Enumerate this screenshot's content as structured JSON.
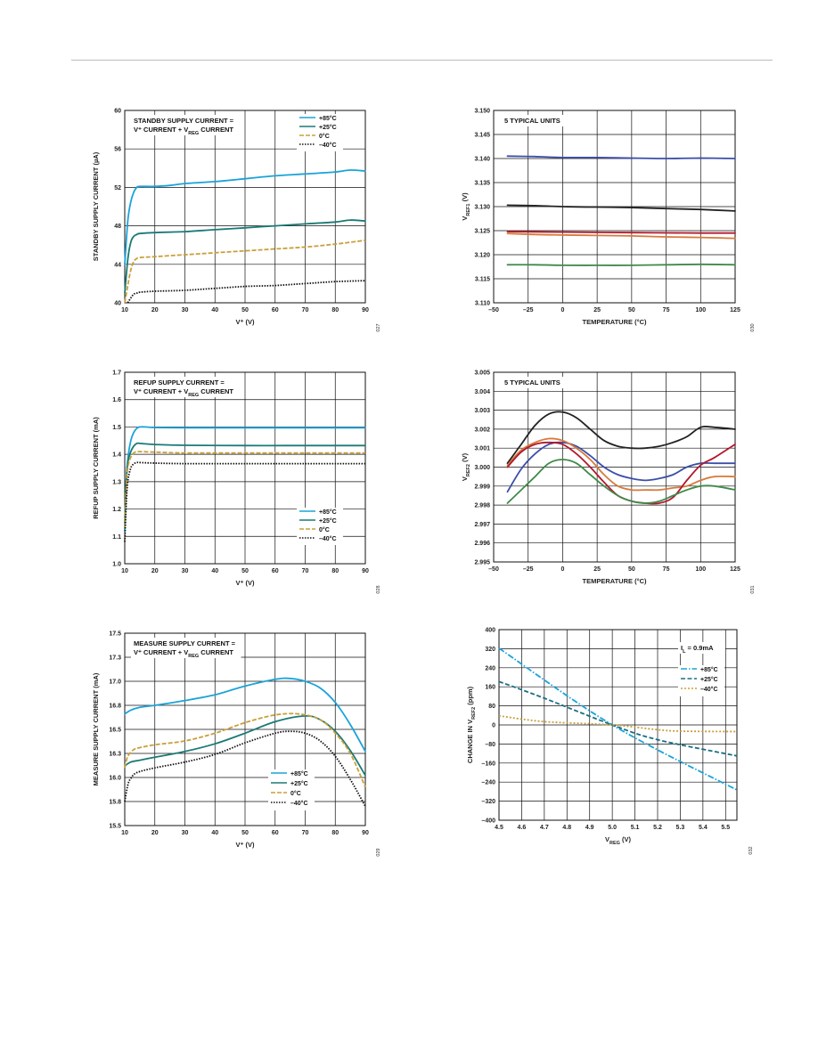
{
  "chart_data": [
    {
      "id": "standby",
      "type": "line",
      "xlabel": "V⁺ (V)",
      "ylabel": "STANDBY SUPPLY CURRENT (µA)",
      "xlim": [
        10,
        90
      ],
      "ylim": [
        40,
        60
      ],
      "xticks": [
        10,
        20,
        30,
        40,
        50,
        60,
        70,
        80,
        90
      ],
      "yticks": [
        40,
        44,
        48,
        52,
        56,
        60
      ],
      "grid": true,
      "annotation": [
        "STANDBY SUPPLY CURRENT =",
        "V⁺ CURRENT + VREG CURRENT"
      ],
      "legend_position": "top-right",
      "figure_number": "027",
      "series": [
        {
          "name": "+85°C",
          "color": "#1aa3d9",
          "dash": "solid",
          "x": [
            10,
            11,
            12,
            13,
            14,
            15,
            20,
            25,
            30,
            40,
            50,
            60,
            70,
            80,
            85,
            90
          ],
          "y": [
            44,
            48.5,
            50.5,
            51.5,
            52,
            52.1,
            52.1,
            52.2,
            52.4,
            52.6,
            52.9,
            53.2,
            53.4,
            53.6,
            53.8,
            53.7
          ]
        },
        {
          "name": "+25°C",
          "color": "#1a7a76",
          "dash": "solid",
          "x": [
            10,
            11,
            12,
            13,
            14,
            15,
            20,
            30,
            40,
            50,
            60,
            70,
            80,
            85,
            90
          ],
          "y": [
            41,
            44.5,
            46.3,
            46.9,
            47.1,
            47.2,
            47.3,
            47.4,
            47.6,
            47.8,
            48.0,
            48.2,
            48.4,
            48.6,
            48.5
          ]
        },
        {
          "name": "0°C",
          "color": "#c8a03a",
          "dash": "5,2",
          "x": [
            10,
            11,
            12,
            13,
            14,
            15,
            20,
            30,
            40,
            50,
            60,
            70,
            80,
            90
          ],
          "y": [
            40,
            41.8,
            43.4,
            44.3,
            44.6,
            44.7,
            44.8,
            45.0,
            45.2,
            45.4,
            45.6,
            45.8,
            46.1,
            46.5
          ]
        },
        {
          "name": "–40°C",
          "color": "#111111",
          "dash": "1.5,1.5",
          "x": [
            11,
            12,
            13,
            14,
            15,
            20,
            30,
            40,
            50,
            60,
            70,
            80,
            90
          ],
          "y": [
            40,
            40.5,
            40.9,
            41.0,
            41.1,
            41.2,
            41.3,
            41.5,
            41.7,
            41.8,
            42.0,
            42.2,
            42.3
          ]
        }
      ]
    },
    {
      "id": "vref1",
      "type": "line",
      "xlabel": "TEMPERATURE (°C)",
      "ylabel": "VREF1 (V)",
      "xlim": [
        -50,
        125
      ],
      "ylim": [
        3.11,
        3.15
      ],
      "xticks": [
        -50,
        -25,
        0,
        25,
        50,
        75,
        100,
        125
      ],
      "xtick_labels": [
        "–50",
        "–25",
        "0",
        "25",
        "50",
        "75",
        "100",
        "125"
      ],
      "yticks": [
        3.11,
        3.115,
        3.12,
        3.125,
        3.13,
        3.135,
        3.14,
        3.145,
        3.15
      ],
      "ytick_labels": [
        "3.110",
        "3.115",
        "3.120",
        "3.125",
        "3.130",
        "3.135",
        "3.140",
        "3.145",
        "3.150"
      ],
      "grid": true,
      "annotation": [
        "5 TYPICAL UNITS"
      ],
      "figure_number": "030",
      "series": [
        {
          "color": "#3b4ea8",
          "x": [
            -40,
            -20,
            0,
            25,
            50,
            75,
            100,
            125
          ],
          "y": [
            3.1405,
            3.1404,
            3.1402,
            3.1402,
            3.1401,
            3.14,
            3.1401,
            3.14
          ]
        },
        {
          "color": "#222222",
          "x": [
            -40,
            -20,
            0,
            25,
            50,
            75,
            100,
            125
          ],
          "y": [
            3.1303,
            3.1302,
            3.13,
            3.1299,
            3.1298,
            3.1296,
            3.1294,
            3.1291
          ]
        },
        {
          "color": "#b3182d",
          "x": [
            -40,
            0,
            50,
            100,
            125
          ],
          "y": [
            3.1248,
            3.1247,
            3.1246,
            3.1245,
            3.1245
          ]
        },
        {
          "color": "#d77a3c",
          "x": [
            -40,
            -20,
            0,
            25,
            50,
            75,
            100,
            125
          ],
          "y": [
            3.1244,
            3.1242,
            3.1241,
            3.124,
            3.1239,
            3.1237,
            3.1236,
            3.1234
          ]
        },
        {
          "color": "#3f8a4a",
          "x": [
            -40,
            -20,
            0,
            25,
            50,
            75,
            100,
            125
          ],
          "y": [
            3.1179,
            3.1179,
            3.1178,
            3.1178,
            3.1178,
            3.1179,
            3.118,
            3.1179
          ]
        }
      ]
    },
    {
      "id": "refup",
      "type": "line",
      "xlabel": "V⁺ (V)",
      "ylabel": "REFUP SUPPLY CURRENT (mA)",
      "xlim": [
        10,
        90
      ],
      "ylim": [
        1.0,
        1.7
      ],
      "xticks": [
        10,
        20,
        30,
        40,
        50,
        60,
        70,
        80,
        90
      ],
      "yticks": [
        1.0,
        1.1,
        1.2,
        1.3,
        1.4,
        1.5,
        1.6,
        1.7
      ],
      "ytick_labels": [
        "1.0",
        "1.1",
        "1.2",
        "1.3",
        "1.4",
        "1.5",
        "1.6",
        "1.7"
      ],
      "grid": true,
      "annotation": [
        "REFUP SUPPLY CURRENT =",
        "V⁺ CURRENT + VREG CURRENT"
      ],
      "legend_position": "bottom-right",
      "figure_number": "028",
      "series": [
        {
          "name": "+85°C",
          "color": "#1aa3d9",
          "dash": "solid",
          "x": [
            10,
            10.5,
            11,
            12,
            13,
            14,
            15,
            17,
            20,
            30,
            50,
            70,
            90
          ],
          "y": [
            1.12,
            1.3,
            1.38,
            1.45,
            1.48,
            1.495,
            1.5,
            1.5,
            1.498,
            1.497,
            1.497,
            1.497,
            1.497
          ]
        },
        {
          "name": "+25°C",
          "color": "#1a7a76",
          "dash": "solid",
          "x": [
            10,
            10.5,
            11,
            12,
            13,
            14,
            15,
            20,
            30,
            50,
            70,
            90
          ],
          "y": [
            1.15,
            1.3,
            1.37,
            1.41,
            1.43,
            1.44,
            1.44,
            1.436,
            1.433,
            1.432,
            1.432,
            1.432
          ]
        },
        {
          "name": "0°C",
          "color": "#c8a03a",
          "dash": "5,2",
          "x": [
            10,
            10.5,
            11,
            12,
            13,
            14,
            15,
            20,
            30,
            50,
            70,
            90
          ],
          "y": [
            1.13,
            1.28,
            1.35,
            1.39,
            1.405,
            1.41,
            1.41,
            1.408,
            1.405,
            1.405,
            1.405,
            1.405
          ]
        },
        {
          "name": "–40°C",
          "color": "#111111",
          "dash": "1.5,1.5",
          "x": [
            10,
            10.5,
            11,
            12,
            13,
            14,
            15,
            20,
            30,
            50,
            70,
            90
          ],
          "y": [
            1.08,
            1.22,
            1.3,
            1.35,
            1.365,
            1.37,
            1.37,
            1.368,
            1.366,
            1.366,
            1.366,
            1.366
          ]
        }
      ]
    },
    {
      "id": "vref2",
      "type": "line",
      "xlabel": "TEMPERATURE (°C)",
      "ylabel": "VREF2 (V)",
      "xlim": [
        -50,
        125
      ],
      "ylim": [
        2.995,
        3.005
      ],
      "xticks": [
        -50,
        -25,
        0,
        25,
        50,
        75,
        100,
        125
      ],
      "xtick_labels": [
        "–50",
        "–25",
        "0",
        "25",
        "50",
        "75",
        "100",
        "125"
      ],
      "yticks": [
        2.995,
        2.996,
        2.997,
        2.998,
        2.999,
        3.0,
        3.001,
        3.002,
        3.003,
        3.004,
        3.005
      ],
      "ytick_labels": [
        "2.995",
        "2.996",
        "2.997",
        "2.998",
        "2.999",
        "3.000",
        "3.001",
        "3.002",
        "3.003",
        "3.004",
        "3.005"
      ],
      "grid": true,
      "annotation": [
        "5 TYPICAL UNITS"
      ],
      "figure_number": "031",
      "series": [
        {
          "color": "#222222",
          "x": [
            -40,
            -30,
            -20,
            -10,
            0,
            10,
            20,
            30,
            40,
            50,
            60,
            70,
            80,
            90,
            100,
            110,
            125
          ],
          "y": [
            3.0002,
            3.0012,
            3.0022,
            3.0028,
            3.0029,
            3.0026,
            3.002,
            3.0014,
            3.0011,
            3.001,
            3.001,
            3.0011,
            3.0013,
            3.0016,
            3.0021,
            3.0021,
            3.002
          ]
        },
        {
          "color": "#3b4ea8",
          "x": [
            -40,
            -30,
            -20,
            -10,
            0,
            10,
            20,
            30,
            40,
            50,
            60,
            70,
            80,
            90,
            100,
            110,
            125
          ],
          "y": [
            2.9987,
            2.9999,
            3.0007,
            3.0012,
            3.0013,
            3.0011,
            3.0006,
            3.0,
            2.9996,
            2.9994,
            2.9993,
            2.9994,
            2.9996,
            3.0,
            3.0002,
            3.0002,
            3.0002
          ]
        },
        {
          "color": "#d77a3c",
          "x": [
            -40,
            -30,
            -20,
            -10,
            0,
            10,
            20,
            30,
            40,
            50,
            60,
            70,
            80,
            90,
            100,
            110,
            125
          ],
          "y": [
            3.0001,
            3.0009,
            3.0013,
            3.0015,
            3.0014,
            3.001,
            3.0004,
            2.9996,
            2.999,
            2.9988,
            2.9988,
            2.9988,
            2.9989,
            2.999,
            2.9993,
            2.9995,
            2.9995
          ]
        },
        {
          "color": "#b3182d",
          "x": [
            -40,
            -30,
            -20,
            -10,
            0,
            10,
            20,
            30,
            40,
            50,
            60,
            70,
            80,
            90,
            100,
            110,
            125
          ],
          "y": [
            3.0,
            3.0008,
            3.0012,
            3.0013,
            3.0012,
            3.0007,
            3.0,
            2.9992,
            2.9985,
            2.9982,
            2.9981,
            2.9981,
            2.9984,
            2.9993,
            3.0001,
            3.0005,
            3.0012
          ]
        },
        {
          "color": "#3f8a4a",
          "x": [
            -40,
            -30,
            -20,
            -10,
            0,
            10,
            20,
            30,
            40,
            50,
            60,
            70,
            80,
            90,
            100,
            110,
            125
          ],
          "y": [
            2.9981,
            2.9988,
            2.9995,
            3.0002,
            3.0004,
            3.0002,
            2.9996,
            2.999,
            2.9985,
            2.9982,
            2.9981,
            2.9982,
            2.9985,
            2.9988,
            2.999,
            2.999,
            2.9988
          ]
        }
      ]
    },
    {
      "id": "measure",
      "type": "line",
      "xlabel": "V⁺ (V)",
      "ylabel": "MEASURE SUPPLY CURRENT (mA)",
      "xlim": [
        10,
        90
      ],
      "ylim": [
        15.5,
        17.5
      ],
      "xticks": [
        10,
        20,
        30,
        40,
        50,
        60,
        70,
        80,
        90
      ],
      "yticks": [
        15.5,
        15.75,
        16.0,
        16.25,
        16.5,
        16.75,
        17.0,
        17.25,
        17.5
      ],
      "ytick_labels": [
        "15.5",
        "15.8",
        "16.0",
        "16.3",
        "16.5",
        "16.8",
        "17.0",
        "17.3",
        "17.5"
      ],
      "grid": true,
      "annotation": [
        "MEASURE SUPPLY CURRENT =",
        "V⁺ CURRENT + VREG CURRENT"
      ],
      "legend_position": "bottom-center",
      "figure_number": "029",
      "series": [
        {
          "name": "+85°C",
          "color": "#1aa3d9",
          "dash": "solid",
          "x": [
            10,
            12,
            15,
            20,
            30,
            40,
            50,
            60,
            65,
            70,
            75,
            80,
            85,
            90
          ],
          "y": [
            16.66,
            16.7,
            16.73,
            16.75,
            16.8,
            16.86,
            16.95,
            17.02,
            17.03,
            17.0,
            16.93,
            16.78,
            16.55,
            16.27
          ]
        },
        {
          "name": "+25°C",
          "color": "#1a7a76",
          "dash": "solid",
          "x": [
            10,
            12,
            15,
            20,
            30,
            40,
            50,
            60,
            70,
            75,
            80,
            85,
            90
          ],
          "y": [
            16.12,
            16.16,
            16.18,
            16.21,
            16.27,
            16.35,
            16.46,
            16.58,
            16.64,
            16.6,
            16.48,
            16.28,
            16.02
          ]
        },
        {
          "name": "0°C",
          "color": "#c8a03a",
          "dash": "5,2",
          "x": [
            10,
            11,
            13,
            15,
            20,
            30,
            40,
            50,
            60,
            68,
            75,
            80,
            85,
            90
          ],
          "y": [
            16.1,
            16.22,
            16.29,
            16.31,
            16.34,
            16.38,
            16.46,
            16.57,
            16.65,
            16.66,
            16.6,
            16.46,
            16.25,
            15.9
          ]
        },
        {
          "name": "–40°C",
          "color": "#111111",
          "dash": "1.5,1.5",
          "x": [
            10,
            11,
            12,
            14,
            20,
            30,
            40,
            50,
            60,
            65,
            70,
            75,
            80,
            85,
            90
          ],
          "y": [
            15.75,
            15.92,
            15.99,
            16.05,
            16.1,
            16.16,
            16.24,
            16.36,
            16.46,
            16.48,
            16.46,
            16.38,
            16.22,
            15.98,
            15.7
          ]
        }
      ]
    },
    {
      "id": "vreg",
      "type": "line",
      "xlabel": "VREG (V)",
      "ylabel": "CHANGE IN VREF2 (ppm)",
      "xlim": [
        4.5,
        5.55
      ],
      "ylim": [
        -400,
        400
      ],
      "xticks": [
        4.5,
        4.6,
        4.7,
        4.8,
        4.9,
        5.0,
        5.1,
        5.2,
        5.3,
        5.4,
        5.5
      ],
      "xtick_labels": [
        "4.5",
        "4.6",
        "4.7",
        "4.8",
        "4.9",
        "5.0",
        "5.1",
        "5.2",
        "5.3",
        "5.4",
        "5.5"
      ],
      "yticks": [
        -400,
        -320,
        -240,
        -160,
        -80,
        0,
        80,
        160,
        240,
        320,
        400
      ],
      "ytick_labels": [
        "–400",
        "–320",
        "–240",
        "–160",
        "–80",
        "0",
        "80",
        "160",
        "240",
        "320",
        "400"
      ],
      "grid": true,
      "annotation": [
        "IL = 0.9mA"
      ],
      "legend_position": "top-right",
      "figure_number": "032",
      "series": [
        {
          "name": "+85°C",
          "color": "#1aa3d9",
          "dash": "7,2,1.5,2",
          "x": [
            4.5,
            5.0,
            5.55
          ],
          "y": [
            322,
            0,
            -273
          ]
        },
        {
          "name": "+25°C",
          "color": "#1a6e83",
          "dash": "5,2.5",
          "x": [
            4.5,
            4.7,
            5.0,
            5.2,
            5.55
          ],
          "y": [
            182,
            112,
            0,
            -62,
            -130
          ]
        },
        {
          "name": "–40°C",
          "color": "#c8a03a",
          "dash": "2,2",
          "x": [
            4.5,
            4.7,
            5.0,
            5.2,
            5.3,
            5.55
          ],
          "y": [
            38,
            14,
            0,
            -20,
            -26,
            -28
          ]
        }
      ]
    }
  ]
}
